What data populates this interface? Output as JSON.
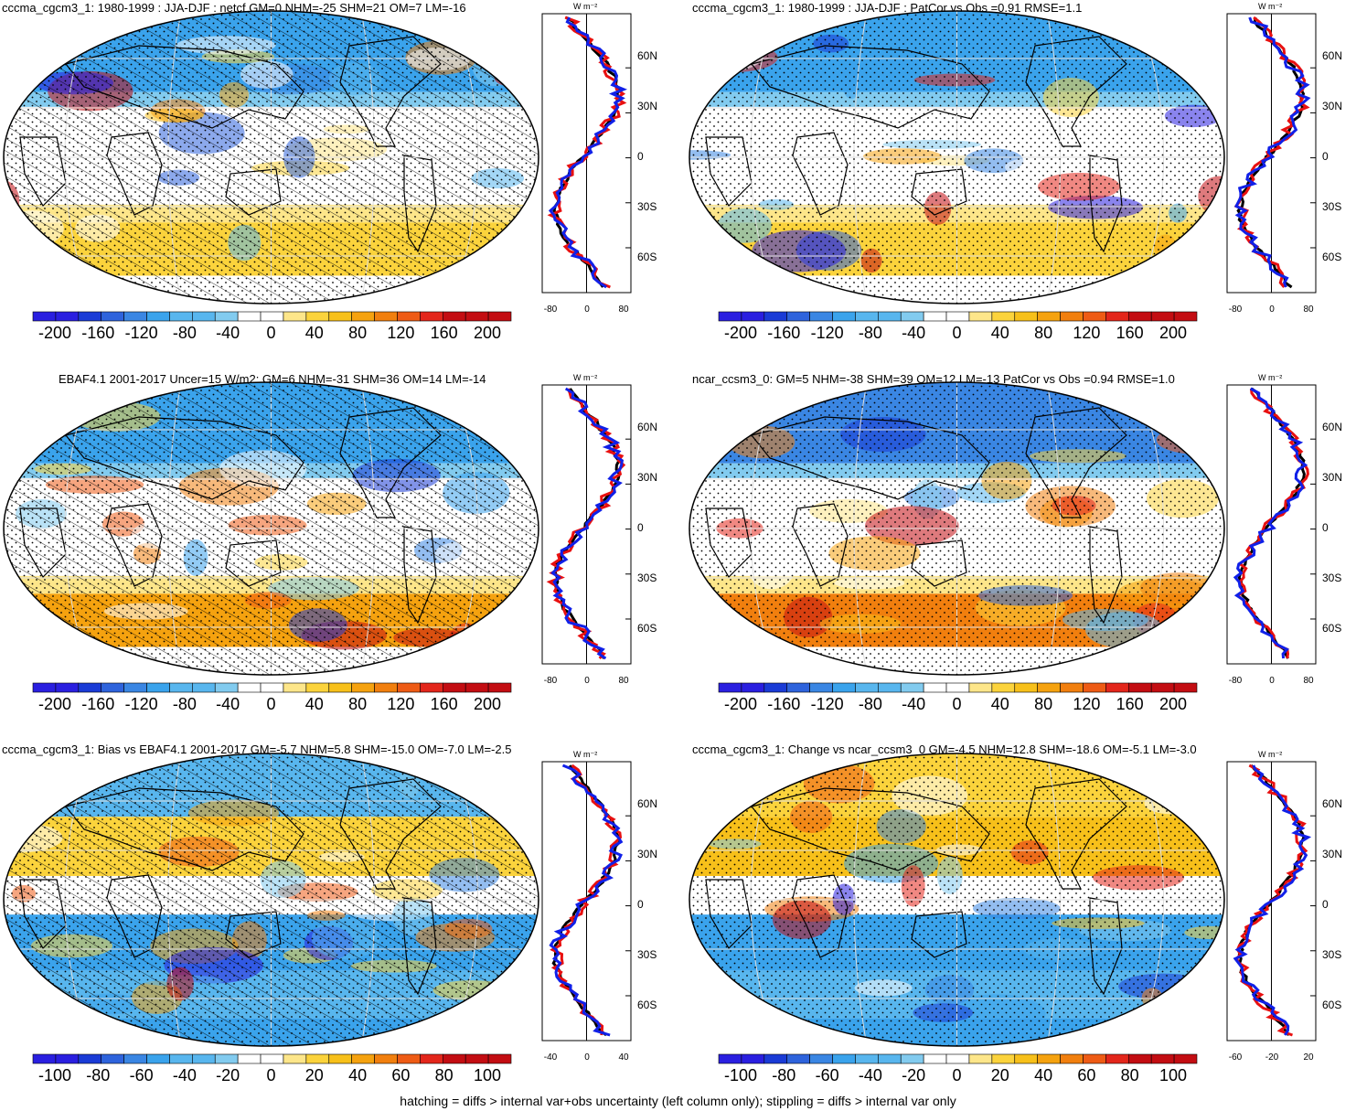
{
  "panels": [
    {
      "title": "cccma_cgcm3_1: 1980-1999 : JJA-DJF : netcf GM=0 NHM=-25 SHM=21 OM=7 LM=-16",
      "cbar_labels": [
        "-200",
        "-160",
        "-120",
        "-80",
        "-40",
        "0",
        "40",
        "80",
        "120",
        "160",
        "200"
      ],
      "xticks": [
        "-80",
        "0",
        "80"
      ]
    },
    {
      "title": "cccma_cgcm3_1: 1980-1999 : JJA-DJF : PatCor vs Obs =0.91 RMSE=1.1",
      "cbar_labels": [
        "-200",
        "-160",
        "-120",
        "-80",
        "-40",
        "0",
        "40",
        "80",
        "120",
        "160",
        "200"
      ],
      "xticks": [
        "-80",
        "0",
        "80"
      ]
    },
    {
      "title": "EBAF4.1 2001-2017 Uncer=15 W/m2: GM=6 NHM=-31 SHM=36 OM=14 LM=-14",
      "cbar_labels": [
        "-200",
        "-160",
        "-120",
        "-80",
        "-40",
        "0",
        "40",
        "80",
        "120",
        "160",
        "200"
      ],
      "xticks": [
        "-80",
        "0",
        "80"
      ]
    },
    {
      "title": "ncar_ccsm3_0: GM=5 NHM=-38 SHM=39 OM=12 LM=-13 PatCor vs Obs =0.94 RMSE=1.0",
      "cbar_labels": [
        "-200",
        "-160",
        "-120",
        "-80",
        "-40",
        "0",
        "40",
        "80",
        "120",
        "160",
        "200"
      ],
      "xticks": [
        "-80",
        "0",
        "80"
      ]
    },
    {
      "title": "cccma_cgcm3_1: Bias vs EBAF4.1 2001-2017 GM=-5.7 NHM=5.8 SHM=-15.0 OM=-7.0 LM=-2.5",
      "cbar_labels": [
        "-100",
        "-80",
        "-60",
        "-40",
        "-20",
        "0",
        "20",
        "40",
        "60",
        "80",
        "100"
      ],
      "xticks": [
        "-40",
        "0",
        "40"
      ]
    },
    {
      "title": "cccma_cgcm3_1: Change vs ncar_ccsm3_0 GM=-4.5 NHM=12.8 SHM=-18.6 OM=-5.1 LM=-3.0",
      "cbar_labels": [
        "-100",
        "-80",
        "-60",
        "-40",
        "-20",
        "0",
        "20",
        "40",
        "60",
        "80",
        "100"
      ],
      "xticks": [
        "-60",
        "-20",
        "20"
      ]
    }
  ],
  "lat_labels": [
    "60N",
    "30N",
    "0",
    "30S",
    "60S"
  ],
  "unit_label": "W m⁻²",
  "footer": "hatching = diffs > internal var+obs uncertainty (left column only); stippling = diffs > internal var only",
  "colors": {
    "palette": [
      "#2a1fe0",
      "#1a3bd6",
      "#2e63dc",
      "#3a86e3",
      "#3aa3ec",
      "#58b6ee",
      "#82cbef",
      "#ffffff",
      "#ffffff",
      "#fde68a",
      "#fbd33c",
      "#f7c01a",
      "#f5a20f",
      "#f17f0e",
      "#ee5b15",
      "#e3261b",
      "#c30d12"
    ]
  },
  "profile_series": [
    {
      "name": "black",
      "color": "#000000"
    },
    {
      "name": "red",
      "color": "#e81010"
    },
    {
      "name": "blue",
      "color": "#1020e8"
    }
  ]
}
